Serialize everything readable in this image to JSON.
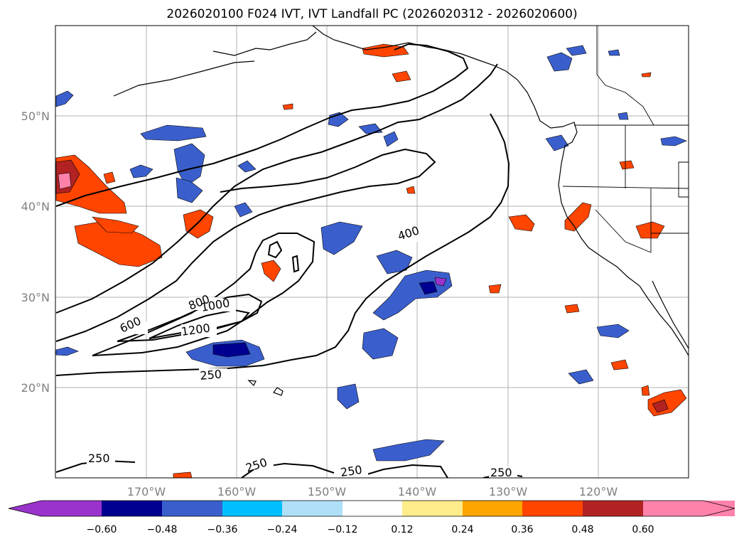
{
  "title": "2026020100 F024 IVT, IVT Landfall PC (2026020312 - 2026020600)",
  "lat_labels": [
    "50°N",
    "40°N",
    "30°N",
    "20°N"
  ],
  "lon_labels": [
    "170°W",
    "160°W",
    "150°W",
    "140°W",
    "130°W",
    "120°W"
  ],
  "contour_labels": [
    "400",
    "600",
    "800",
    "1000",
    "1200",
    "250",
    "250",
    "250",
    "250",
    "250"
  ],
  "colorbar": {
    "colors": [
      "#9a33cc",
      "#000090",
      "#3a5fcd",
      "#00bfff",
      "#afe0f8",
      "#ffffff",
      "#ffec8b",
      "#ffa500",
      "#ff4500",
      "#b22222",
      "#ff82ab"
    ],
    "tick_labels": [
      "−0.60",
      "−0.48",
      "−0.36",
      "−0.24",
      "−0.12",
      "0.12",
      "0.24",
      "0.36",
      "0.48",
      "0.60"
    ]
  }
}
